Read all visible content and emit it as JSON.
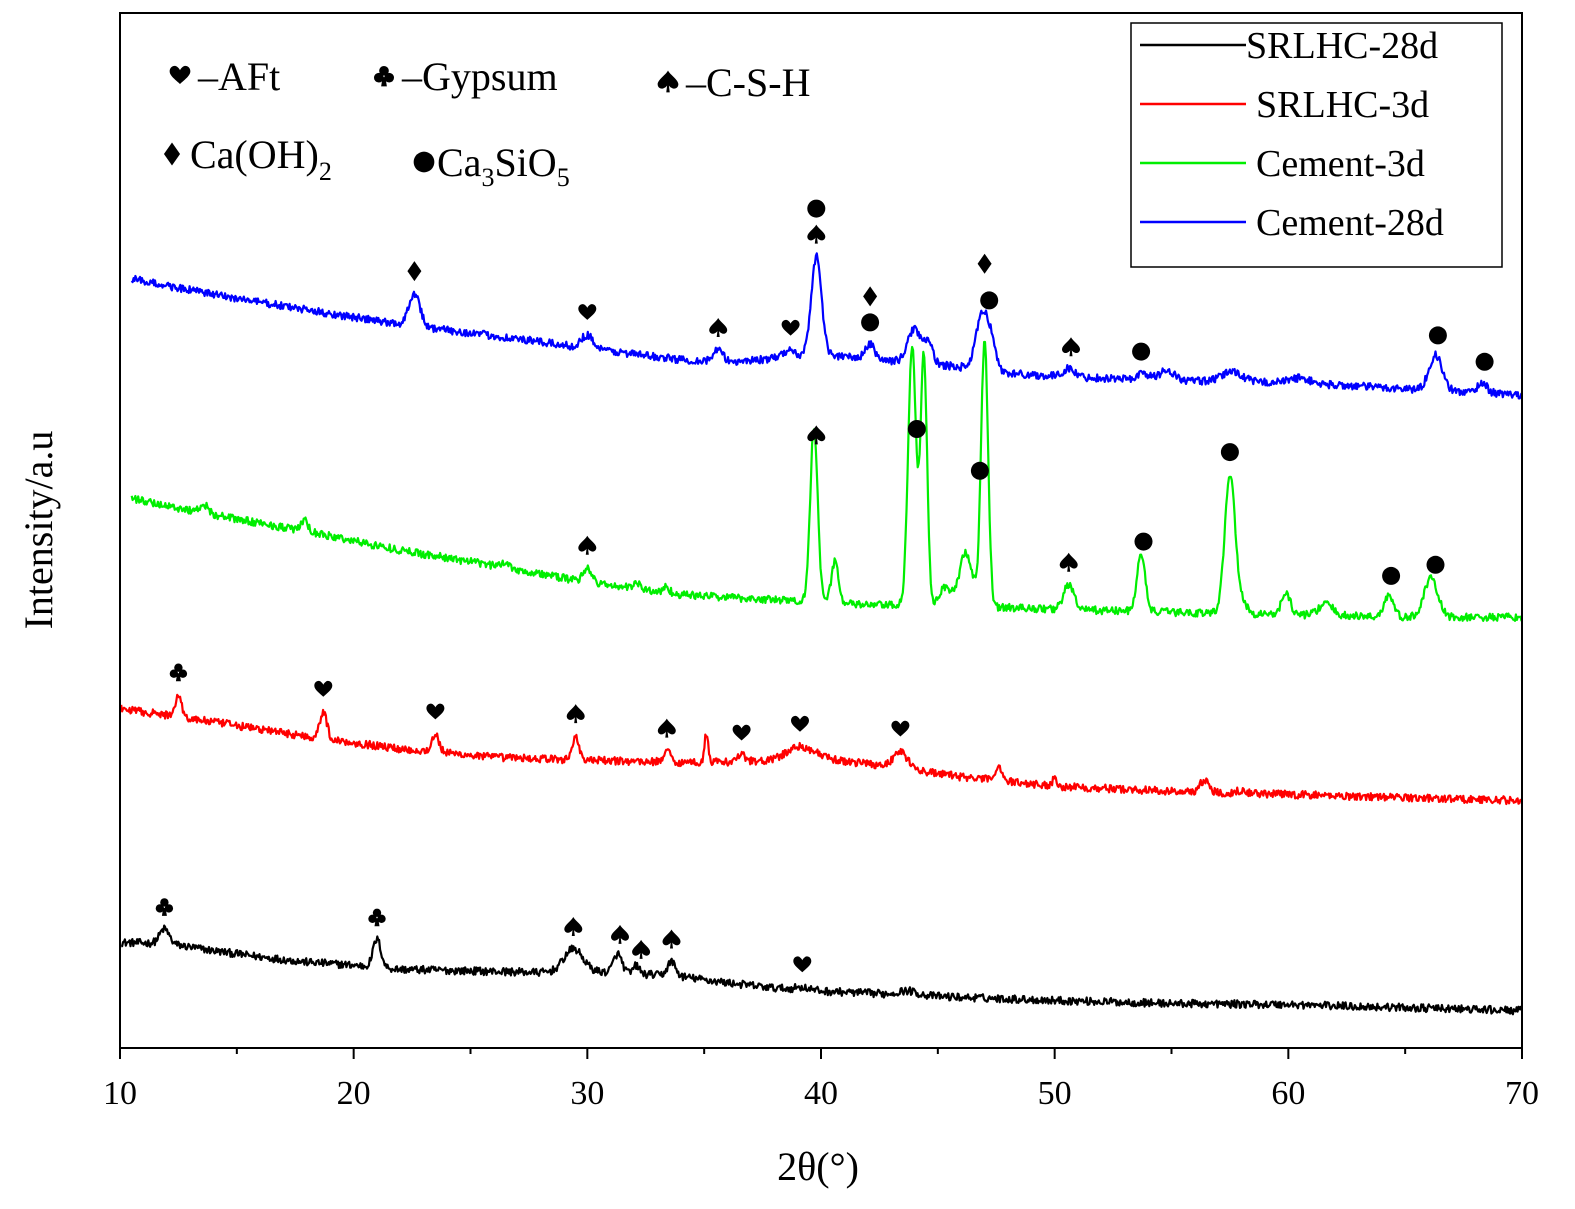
{
  "chart_data": {
    "type": "line",
    "xlabel": "2θ(°)",
    "ylabel": "Intensity/a.u",
    "xlim": [
      10,
      70
    ],
    "x_ticks": [
      "10",
      "20",
      "30",
      "40",
      "50",
      "60",
      "70"
    ],
    "grid": false,
    "y_scale": "arbitrary units, patterns vertically offset",
    "legend_position": "top-right",
    "legend": [
      "SRLHC-28d",
      "SRLHC-3d",
      "Cement-3d",
      "Cement-28d"
    ],
    "phase_key": [
      {
        "symbol": "heart",
        "label": "–AFt"
      },
      {
        "symbol": "club",
        "label": "–Gypsum"
      },
      {
        "symbol": "spade",
        "label": "–C-S-H"
      },
      {
        "symbol": "diamond",
        "label": "Ca(OH)",
        "sub": "2"
      },
      {
        "symbol": "circle",
        "label": "Ca",
        "sub1": "3",
        "mid": "SiO",
        "sub2": "5"
      }
    ],
    "series": [
      {
        "name": "SRLHC-28d",
        "color": "#000000",
        "baseline": [
          [
            10,
            10.2
          ],
          [
            12,
            10.1
          ],
          [
            14,
            9.4
          ],
          [
            16,
            8.8
          ],
          [
            18,
            8.3
          ],
          [
            20,
            8.0
          ],
          [
            22,
            7.6
          ],
          [
            24,
            7.5
          ],
          [
            26,
            7.4
          ],
          [
            28,
            7.3
          ],
          [
            30,
            7.4
          ],
          [
            32,
            7.2
          ],
          [
            34,
            6.9
          ],
          [
            36,
            6.3
          ],
          [
            38,
            5.8
          ],
          [
            40,
            5.5
          ],
          [
            42,
            5.3
          ],
          [
            44,
            5.1
          ],
          [
            46,
            4.9
          ],
          [
            50,
            4.6
          ],
          [
            55,
            4.3
          ],
          [
            60,
            4.2
          ],
          [
            65,
            3.9
          ],
          [
            70,
            3.6
          ]
        ],
        "peaks": [
          [
            11.9,
            1.4,
            0.2
          ],
          [
            21.0,
            2.7,
            0.17
          ],
          [
            29.4,
            2.2,
            0.4
          ],
          [
            31.3,
            1.8,
            0.18
          ],
          [
            32.1,
            0.8,
            0.12
          ],
          [
            33.6,
            1.4,
            0.17
          ],
          [
            43.7,
            0.4,
            0.4
          ],
          [
            39.2,
            0.25,
            0.3
          ]
        ],
        "markers": [
          {
            "symbol": "club",
            "x": 11.9
          },
          {
            "symbol": "club",
            "x": 21.0
          },
          {
            "symbol": "spade",
            "x": 29.4
          },
          {
            "symbol": "spade",
            "x": 31.4
          },
          {
            "symbol": "spade",
            "x": 32.3
          },
          {
            "symbol": "spade",
            "x": 33.6
          },
          {
            "symbol": "heart",
            "x": 39.2
          }
        ]
      },
      {
        "name": "SRLHC-3d",
        "color": "#ff0000",
        "baseline": [
          [
            10,
            32.8
          ],
          [
            14,
            31.5
          ],
          [
            18,
            30.1
          ],
          [
            22,
            28.9
          ],
          [
            26,
            28.1
          ],
          [
            30,
            27.8
          ],
          [
            34,
            27.6
          ],
          [
            38,
            27.7
          ],
          [
            40,
            27.9
          ],
          [
            42,
            27.5
          ],
          [
            46,
            26.2
          ],
          [
            50,
            25.3
          ],
          [
            55,
            24.8
          ],
          [
            60,
            24.5
          ],
          [
            65,
            24.2
          ],
          [
            70,
            23.9
          ]
        ],
        "peaks": [
          [
            12.5,
            2.2,
            0.13
          ],
          [
            18.7,
            2.6,
            0.15
          ],
          [
            23.5,
            1.7,
            0.15
          ],
          [
            29.5,
            2.3,
            0.14
          ],
          [
            33.4,
            1.1,
            0.15
          ],
          [
            35.1,
            2.8,
            0.08
          ],
          [
            36.6,
            0.6,
            0.2
          ],
          [
            39.1,
            1.3,
            0.6
          ],
          [
            43.4,
            1.6,
            0.3
          ],
          [
            47.6,
            1.4,
            0.15
          ],
          [
            50.0,
            0.8,
            0.1
          ],
          [
            56.4,
            1.1,
            0.2
          ],
          [
            58.0,
            0.3,
            0.2
          ]
        ],
        "markers": [
          {
            "symbol": "club",
            "x": 12.5
          },
          {
            "symbol": "heart",
            "x": 18.7
          },
          {
            "symbol": "heart",
            "x": 23.5
          },
          {
            "symbol": "spade",
            "x": 29.5
          },
          {
            "symbol": "spade",
            "x": 33.4
          },
          {
            "symbol": "heart",
            "x": 36.6
          },
          {
            "symbol": "heart",
            "x": 39.1
          },
          {
            "symbol": "heart",
            "x": 43.4
          }
        ]
      },
      {
        "name": "Cement-3d",
        "color": "#00ee00",
        "baseline": [
          [
            10,
            53.3
          ],
          [
            14,
            51.5
          ],
          [
            18,
            49.9
          ],
          [
            22,
            48.1
          ],
          [
            26,
            46.6
          ],
          [
            30,
            45.0
          ],
          [
            34,
            43.8
          ],
          [
            38,
            43.3
          ],
          [
            42,
            42.8
          ],
          [
            46,
            42.7
          ],
          [
            50,
            42.4
          ],
          [
            55,
            42.1
          ],
          [
            60,
            41.9
          ],
          [
            65,
            41.6
          ],
          [
            70,
            41.6
          ]
        ],
        "peaks": [
          [
            13.6,
            0.8,
            0.2
          ],
          [
            17.9,
            1.0,
            0.15
          ],
          [
            26.5,
            0.5,
            0.2
          ],
          [
            30.0,
            1.4,
            0.18
          ],
          [
            32.1,
            0.6,
            0.15
          ],
          [
            33.4,
            0.6,
            0.12
          ],
          [
            39.7,
            17.0,
            0.16
          ],
          [
            40.6,
            4.1,
            0.15
          ],
          [
            43.9,
            25.0,
            0.17
          ],
          [
            44.4,
            24.0,
            0.14
          ],
          [
            45.3,
            1.8,
            0.25
          ],
          [
            46.2,
            5.2,
            0.28
          ],
          [
            47.0,
            25.5,
            0.15
          ],
          [
            50.6,
            2.4,
            0.22
          ],
          [
            53.7,
            5.4,
            0.18
          ],
          [
            57.5,
            13.4,
            0.22
          ],
          [
            58.0,
            1.2,
            0.2
          ],
          [
            59.9,
            2.1,
            0.18
          ],
          [
            61.6,
            1.1,
            0.3
          ],
          [
            64.3,
            2.1,
            0.2
          ],
          [
            66.1,
            3.7,
            0.3
          ]
        ],
        "markers": [
          {
            "symbol": "spade",
            "x": 30.0
          },
          {
            "symbol": "spade",
            "x": 39.8
          },
          {
            "symbol": "circle",
            "x": 44.1
          },
          {
            "symbol": "circle",
            "x": 46.8
          },
          {
            "symbol": "spade",
            "x": 50.6
          },
          {
            "symbol": "circle",
            "x": 53.8
          },
          {
            "symbol": "circle",
            "x": 57.5
          },
          {
            "symbol": "circle",
            "x": 64.4
          },
          {
            "symbol": "circle",
            "x": 66.3
          }
        ]
      },
      {
        "name": "Cement-28d",
        "color": "#0000ff",
        "baseline": [
          [
            10,
            74.5
          ],
          [
            14,
            72.8
          ],
          [
            18,
            71.3
          ],
          [
            22,
            69.9
          ],
          [
            26,
            68.8
          ],
          [
            30,
            67.6
          ],
          [
            34,
            66.5
          ],
          [
            36,
            66.3
          ],
          [
            38,
            66.6
          ],
          [
            40,
            67.0
          ],
          [
            42,
            66.6
          ],
          [
            44,
            66.2
          ],
          [
            46,
            65.8
          ],
          [
            48,
            65.2
          ],
          [
            50,
            64.9
          ],
          [
            55,
            64.5
          ],
          [
            60,
            64.3
          ],
          [
            65,
            63.7
          ],
          [
            70,
            63.1
          ]
        ],
        "peaks": [
          [
            22.6,
            3.2,
            0.24
          ],
          [
            30.0,
            1.3,
            0.25
          ],
          [
            35.6,
            1.1,
            0.2
          ],
          [
            38.6,
            0.7,
            0.25
          ],
          [
            39.8,
            9.5,
            0.22
          ],
          [
            42.1,
            1.4,
            0.2
          ],
          [
            44.0,
            3.3,
            0.28
          ],
          [
            44.6,
            1.8,
            0.2
          ],
          [
            46.9,
            5.3,
            0.26
          ],
          [
            47.3,
            2.2,
            0.2
          ],
          [
            50.6,
            0.8,
            0.25
          ],
          [
            53.8,
            0.6,
            0.25
          ],
          [
            54.8,
            1.0,
            0.3
          ],
          [
            57.6,
            1.0,
            0.4
          ],
          [
            60.5,
            0.5,
            0.4
          ],
          [
            66.3,
            3.4,
            0.28
          ],
          [
            68.3,
            1.0,
            0.2
          ]
        ],
        "markers": [
          {
            "symbol": "diamond",
            "x": 22.6
          },
          {
            "symbol": "heart",
            "x": 30.0
          },
          {
            "symbol": "spade",
            "x": 35.6
          },
          {
            "symbol": "heart",
            "x": 38.7
          },
          {
            "symbol": "spade",
            "x": 39.8
          },
          {
            "symbol": "circle",
            "x": 39.8
          },
          {
            "symbol": "circle",
            "x": 42.1
          },
          {
            "symbol": "diamond",
            "x": 42.1
          },
          {
            "symbol": "circle",
            "x": 47.2
          },
          {
            "symbol": "diamond",
            "x": 47.0
          },
          {
            "symbol": "spade",
            "x": 50.7
          },
          {
            "symbol": "circle",
            "x": 53.7
          },
          {
            "symbol": "circle",
            "x": 66.4
          },
          {
            "symbol": "circle",
            "x": 68.4
          }
        ]
      }
    ]
  }
}
